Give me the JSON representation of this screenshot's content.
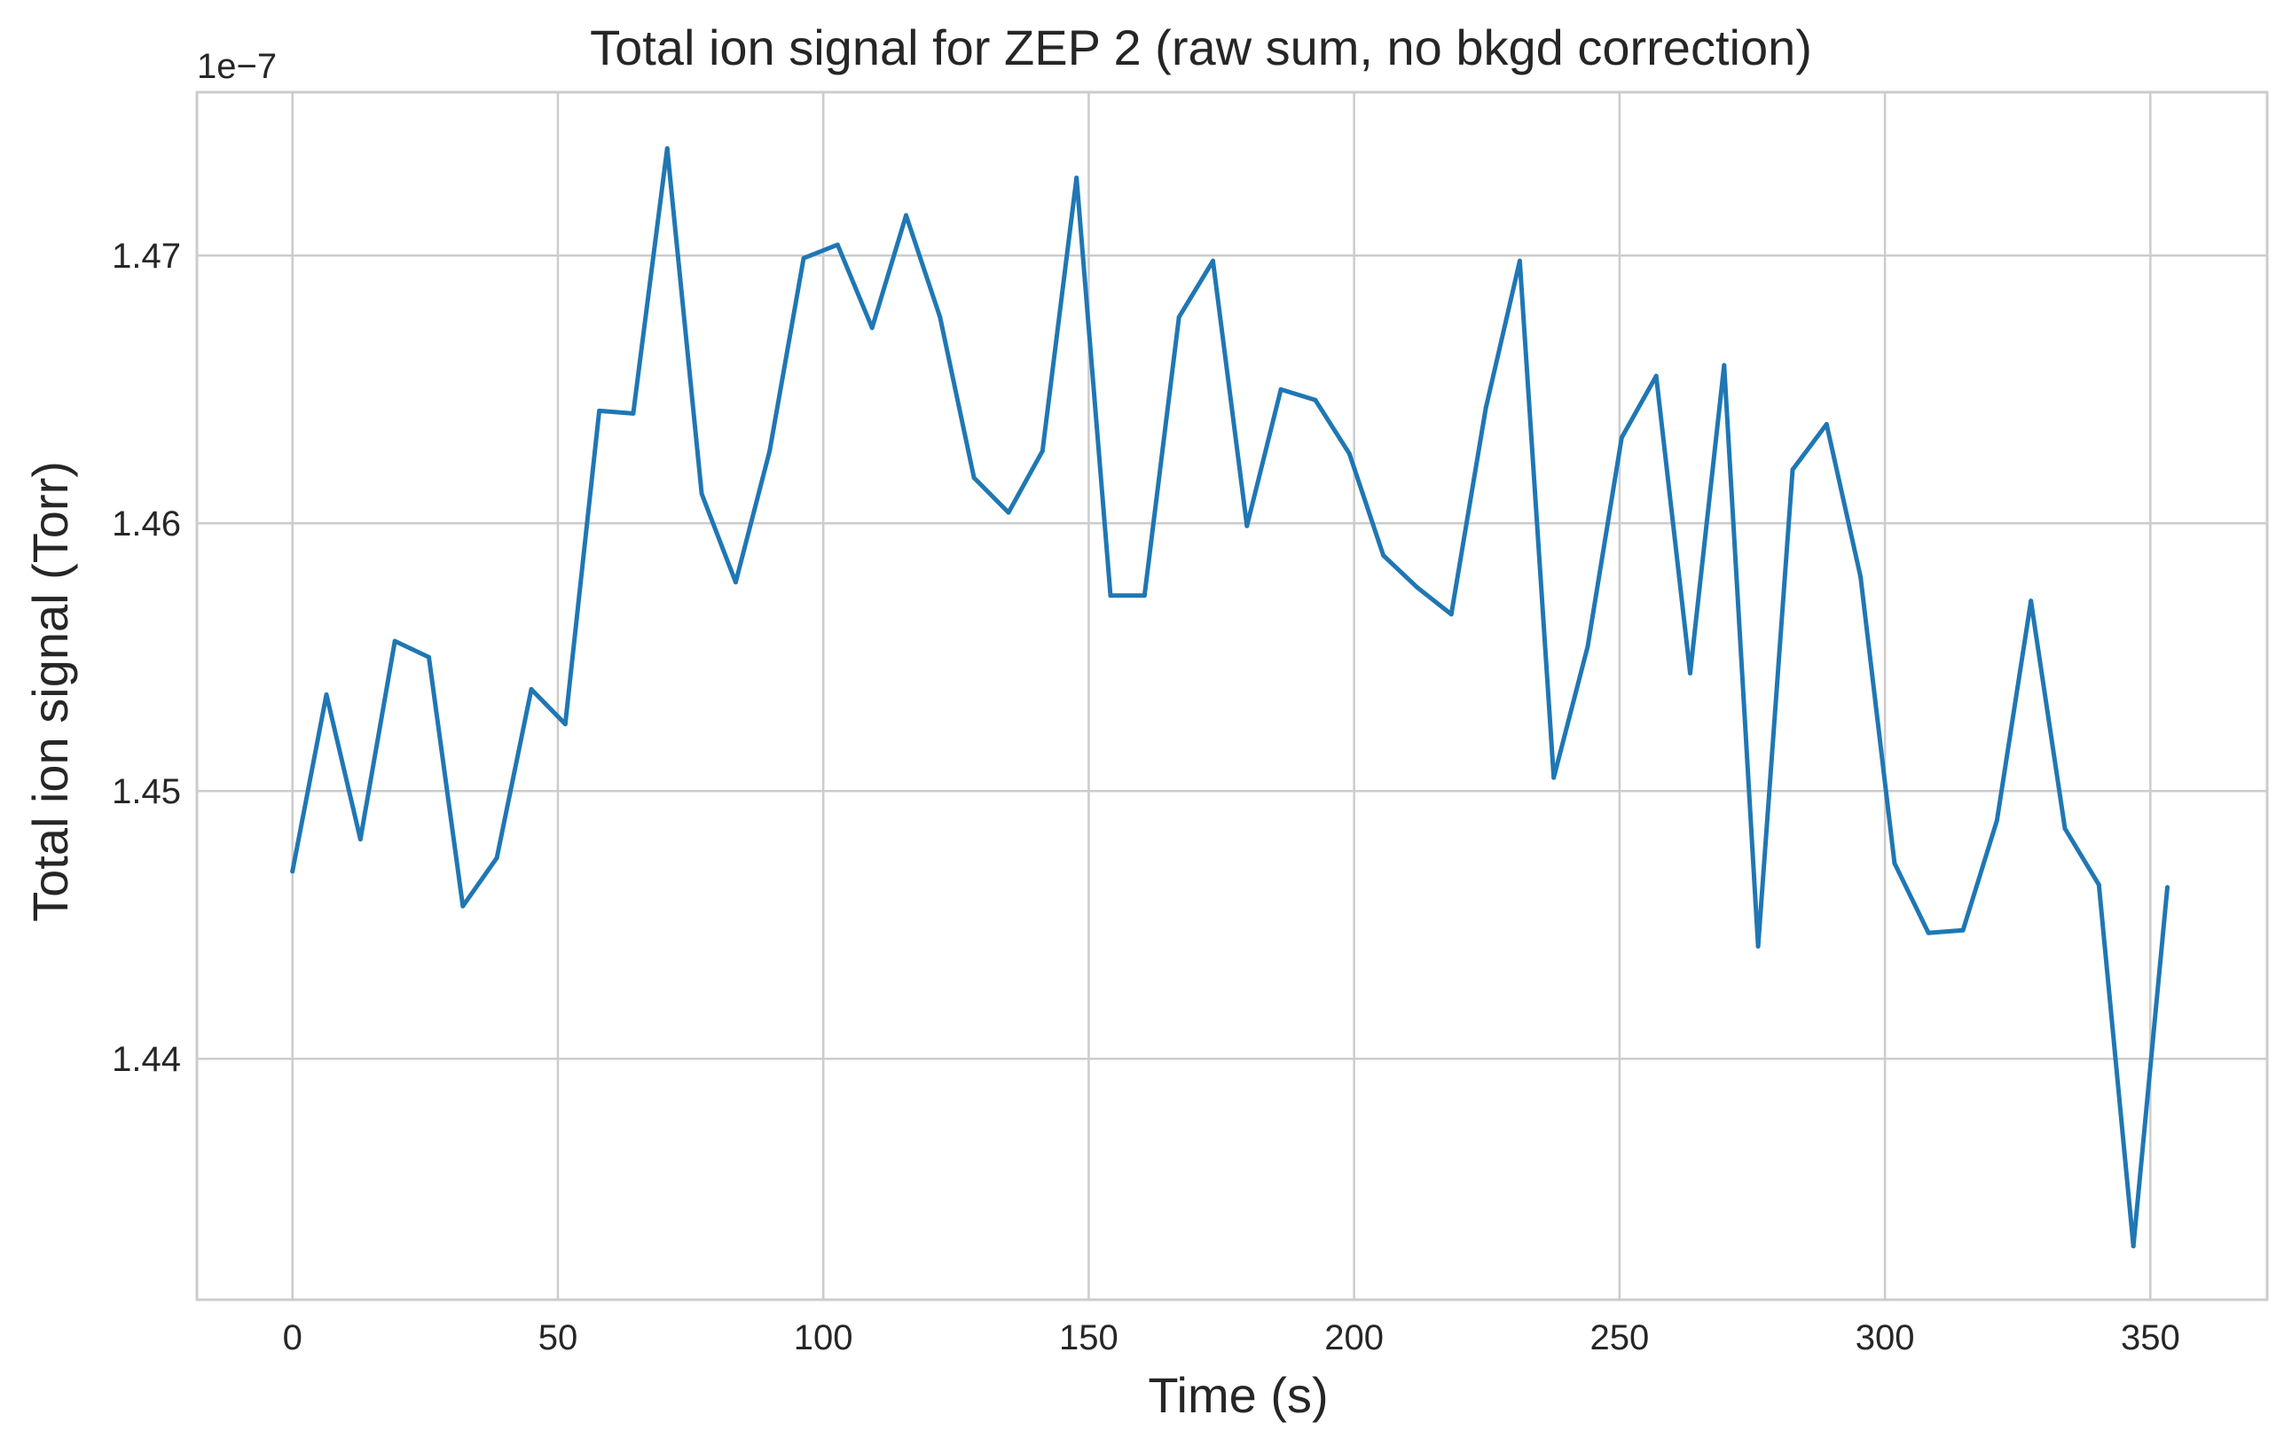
{
  "chart_data": {
    "type": "line",
    "title": "Total ion signal for ZEP 2 (raw sum, no bkgd correction)",
    "xlabel": "Time (s)",
    "ylabel": "Total ion signal (Torr)",
    "y_offset_label": "1e−7",
    "xlim": [
      -18,
      372
    ],
    "ylim": [
      1.431,
      1.4761
    ],
    "x_ticks": [
      0,
      50,
      100,
      150,
      200,
      250,
      300,
      350
    ],
    "x_tick_labels": [
      "0",
      "50",
      "100",
      "150",
      "200",
      "250",
      "300",
      "350"
    ],
    "y_ticks": [
      1.44,
      1.45,
      1.46,
      1.47
    ],
    "y_tick_labels": [
      "1.44",
      "1.45",
      "1.46",
      "1.47"
    ],
    "grid": true,
    "color": "#1f77b4",
    "series": [
      {
        "x": [
          0,
          6.4,
          12.8,
          19.3,
          25.7,
          32.1,
          38.5,
          45.0,
          51.4,
          57.8,
          64.2,
          70.6,
          77.1,
          83.5,
          89.9,
          96.3,
          102.7,
          109.2,
          115.6,
          122.0,
          128.4,
          134.9,
          141.3,
          147.7,
          154.1,
          160.5,
          167.0,
          173.4,
          179.8,
          186.2,
          192.7,
          199.1,
          205.5,
          211.9,
          218.3,
          224.8,
          231.2,
          237.6,
          244.0,
          250.4,
          256.9,
          263.3,
          269.7,
          276.1,
          282.6,
          289.0,
          295.4,
          301.8,
          308.2,
          314.7,
          321.1,
          327.5,
          333.9,
          340.3,
          346.8,
          353.2
        ],
        "y": [
          1.447,
          1.4536,
          1.4482,
          1.4556,
          1.455,
          1.4457,
          1.4475,
          1.4538,
          1.4525,
          1.4642,
          1.4641,
          1.474,
          1.4611,
          1.4578,
          1.4627,
          1.4699,
          1.4704,
          1.4673,
          1.4715,
          1.4677,
          1.4617,
          1.4604,
          1.4627,
          1.4729,
          1.4573,
          1.4573,
          1.4677,
          1.4698,
          1.4599,
          1.465,
          1.4646,
          1.4626,
          1.4588,
          1.4576,
          1.4566,
          1.4643,
          1.4698,
          1.4505,
          1.4554,
          1.4632,
          1.4655,
          1.4544,
          1.4659,
          1.4442,
          1.462,
          1.4637,
          1.458,
          1.4473,
          1.4447,
          1.4448,
          1.4489,
          1.4571,
          1.4486,
          1.4465,
          1.433,
          1.4464
        ]
      }
    ]
  }
}
